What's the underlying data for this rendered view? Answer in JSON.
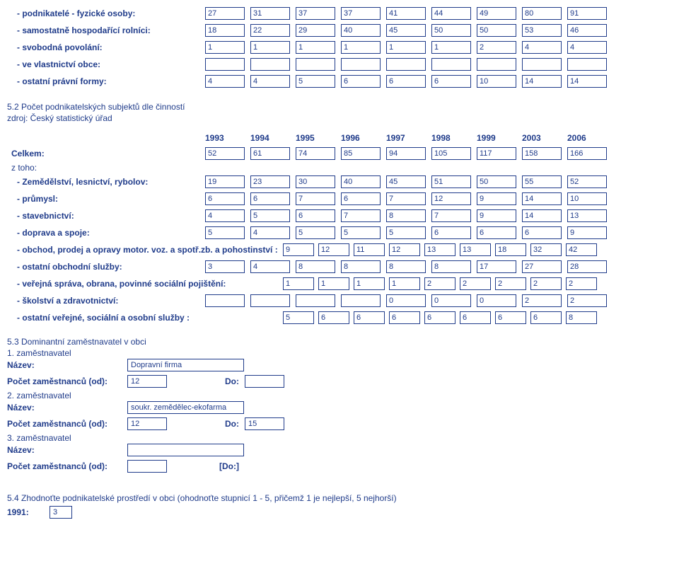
{
  "colors": {
    "text": "#1f3b8a",
    "border": "#1f3b8a",
    "bg": "#ffffff"
  },
  "rows1": [
    {
      "label": "- podnikatelé - fyzické osoby:",
      "vals": [
        "27",
        "31",
        "37",
        "37",
        "41",
        "44",
        "49",
        "80",
        "91"
      ]
    },
    {
      "label": "- samostatně hospodařící rolníci:",
      "vals": [
        "18",
        "22",
        "29",
        "40",
        "45",
        "50",
        "50",
        "53",
        "46"
      ]
    },
    {
      "label": "- svobodná povolání:",
      "vals": [
        "1",
        "1",
        "1",
        "1",
        "1",
        "1",
        "2",
        "4",
        "4"
      ]
    },
    {
      "label": "- ve vlastnictví obce:",
      "vals": [
        "",
        "",
        "",
        "",
        "",
        "",
        "",
        "",
        ""
      ]
    },
    {
      "label": "- ostatní právní formy:",
      "vals": [
        "4",
        "4",
        "5",
        "6",
        "6",
        "6",
        "10",
        "14",
        "14"
      ]
    }
  ],
  "sec52": {
    "title": "5.2 Počet podnikatelských subjektů dle činností",
    "source": "zdroj: Český statistický úřad",
    "years": [
      "1993",
      "1994",
      "1995",
      "1996",
      "1997",
      "1998",
      "1999",
      "2003",
      "2006"
    ],
    "celkem_label": "Celkem:",
    "celkem_vals": [
      "52",
      "61",
      "74",
      "85",
      "94",
      "105",
      "117",
      "158",
      "166"
    ],
    "ztoho": "z toho:",
    "lines": [
      {
        "label": "- Zemědělství, lesnictví, rybolov:",
        "vals": [
          "19",
          "23",
          "30",
          "40",
          "45",
          "51",
          "50",
          "55",
          "52"
        ]
      },
      {
        "label": "- průmysl:",
        "vals": [
          "6",
          "6",
          "7",
          "6",
          "7",
          "12",
          "9",
          "14",
          "10"
        ]
      },
      {
        "label": "- stavebnictví:",
        "vals": [
          "4",
          "5",
          "6",
          "7",
          "8",
          "7",
          "9",
          "14",
          "13"
        ]
      },
      {
        "label": "- doprava a spoje:",
        "vals": [
          "5",
          "4",
          "5",
          "5",
          "5",
          "6",
          "6",
          "6",
          "9"
        ]
      },
      {
        "label": "- obchod, prodej a opravy motor. voz. a spotř.zb. a pohostinství :",
        "vals": [
          "9",
          "12",
          "11",
          "12",
          "13",
          "13",
          "18",
          "32",
          "42"
        ],
        "wide": true
      },
      {
        "label": "- ostatní obchodní služby:",
        "vals": [
          "3",
          "4",
          "8",
          "8",
          "8",
          "8",
          "17",
          "27",
          "28"
        ]
      },
      {
        "label": "- veřejná správa, obrana, povinné sociální pojištění:",
        "vals": [
          "1",
          "1",
          "1",
          "1",
          "2",
          "2",
          "2",
          "2",
          "2"
        ],
        "wide": true
      },
      {
        "label": "- školství a zdravotnictví:",
        "vals": [
          "",
          "",
          "",
          "",
          "0",
          "0",
          "0",
          "2",
          "2"
        ]
      },
      {
        "label": "- ostatní veřejné, sociální a osobní služby :",
        "vals": [
          "5",
          "6",
          "6",
          "6",
          "6",
          "6",
          "6",
          "6",
          "8"
        ],
        "wide": true
      }
    ]
  },
  "sec53": {
    "title": "5.3 Dominantní zaměstnavatel v obci",
    "emp1_h": "1. zaměstnavatel",
    "emp2_h": "2. zaměstnavatel",
    "emp3_h": "3. zaměstnavatel",
    "name_label": "Název:",
    "count_label": "Počet zaměstnanců (od):",
    "do_label": "Do:",
    "do3_label": "[Do:]",
    "e1_name": "Dopravní firma",
    "e1_od": "12",
    "e1_do": "",
    "e2_name": "soukr. zemědělec-ekofarma",
    "e2_od": "12",
    "e2_do": "15",
    "e3_name": "",
    "e3_od": ""
  },
  "sec54": {
    "q": "5.4 Zhodnoťte podnikatelské prostředí v obci (ohodnoťte stupnicí 1 - 5, přičemž 1 je nejlepší, 5 nejhorší)",
    "yr_label": "1991:",
    "yr_val": "3"
  }
}
